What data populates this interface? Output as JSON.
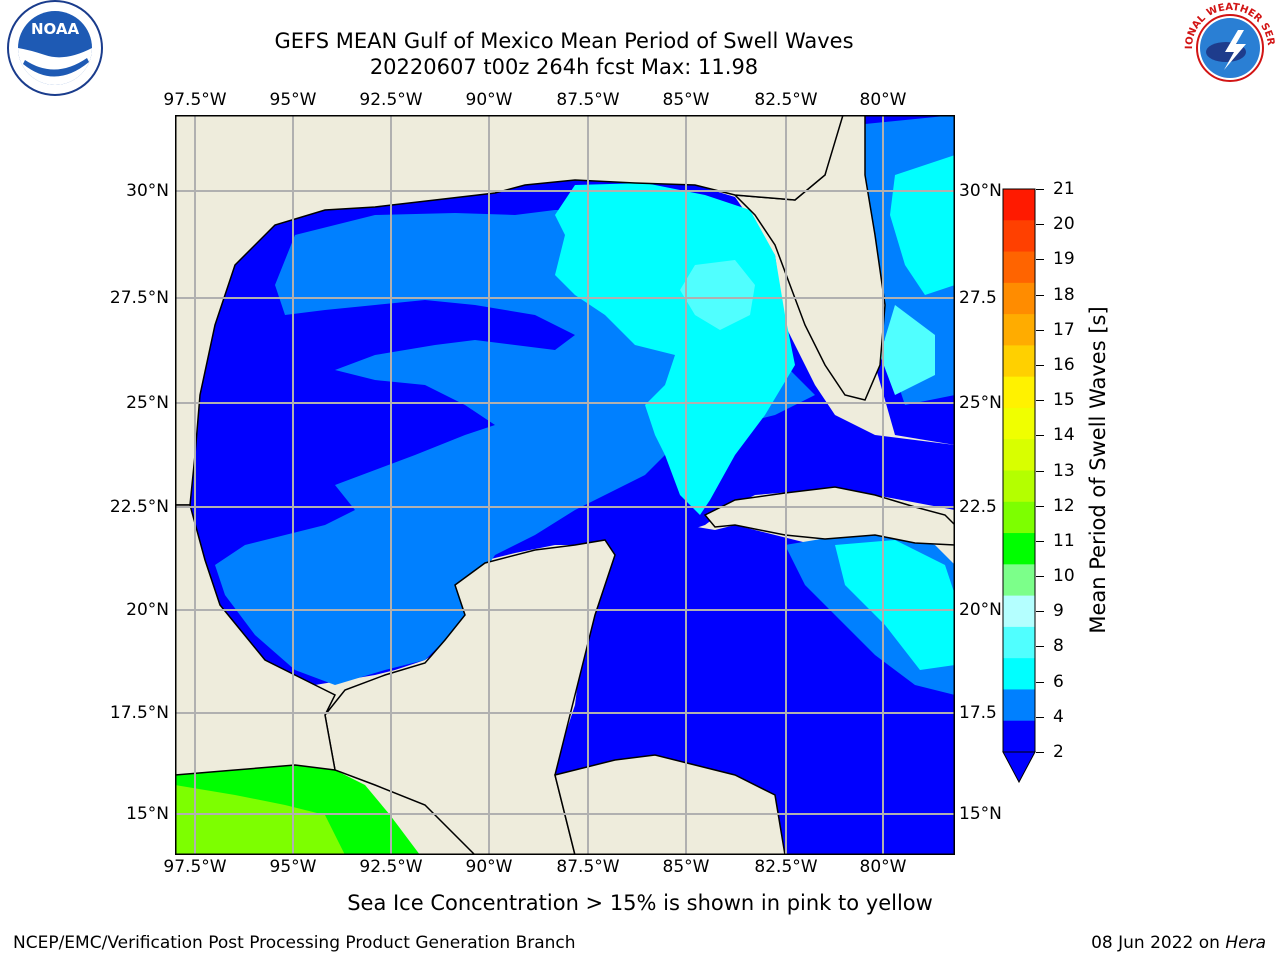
{
  "header": {
    "title_line1": "GEFS MEAN Gulf of Mexico Mean Period of Swell Waves",
    "title_line2": "20220607 t00z 264h fcst   Max: 11.98"
  },
  "axes": {
    "lon_labels": [
      "97.5°W",
      "95°W",
      "92.5°W",
      "90°W",
      "87.5°W",
      "85°W",
      "82.5°W",
      "80°W"
    ],
    "lat_labels_left": [
      "30°N",
      "27.5°N",
      "25°N",
      "22.5°N",
      "20°N",
      "17.5°N",
      "15°N"
    ],
    "lat_labels_right": [
      "30°N",
      "27.5",
      "25°N",
      "22.5",
      "20°N",
      "17.5",
      "15°N"
    ]
  },
  "colorbar": {
    "label": "Mean Period of Swell Waves [s]",
    "ticks": [
      "21",
      "20",
      "19",
      "18",
      "17",
      "16",
      "15",
      "14",
      "13",
      "12",
      "11",
      "10",
      "9",
      "8",
      "6",
      "4",
      "2"
    ],
    "colors": [
      "#ff1a00",
      "#ff4000",
      "#ff6400",
      "#ff8c00",
      "#ffac00",
      "#ffd000",
      "#fff200",
      "#f0ff00",
      "#d8ff00",
      "#b4ff00",
      "#7dff00",
      "#00ff00",
      "#7cff8a",
      "#b4ffff",
      "#50ffff",
      "#00ffff",
      "#0080ff",
      "#0000ff"
    ]
  },
  "map": {
    "background_land": "#eeecdc",
    "period_colors": {
      "p2": "#0000ff",
      "p4": "#0080ff",
      "p6": "#00ffff",
      "p8": "#50ffff",
      "p10": "#00ff00",
      "p12": "#7dff00"
    }
  },
  "note": "Sea Ice Concentration > 15% is shown in pink to yellow",
  "footer": {
    "left": "NCEP/EMC/Verification Post Processing Product Generation Branch",
    "right_date": "08 Jun 2022 on",
    "right_host": "Hera"
  },
  "logos": {
    "left": "noaa-logo",
    "left_text": "NOAA",
    "right": "nws-logo",
    "right_text": "NATIONAL WEATHER SERVICE"
  }
}
